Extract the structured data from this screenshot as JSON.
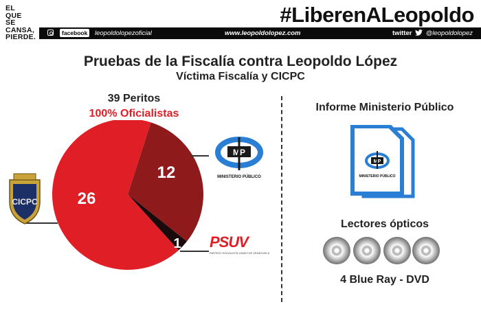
{
  "header": {
    "slogan_lines": [
      "EL",
      "QUE",
      "SE",
      "CANSA,",
      "PIERDE."
    ],
    "hashtag": "#LiberenALeopoldo",
    "facebook_label": "facebook",
    "facebook_handle": "leopoldolopezoficial",
    "website": "www.leopoldolopez.com",
    "twitter_label": "twitter",
    "twitter_handle": "@leopoldolopez"
  },
  "title": "Pruebas de la Fiscalía contra Leopoldo López",
  "subtitle": "Víctima Fiscalía y CICPC",
  "left_panel": {
    "peritos": "39 Peritos",
    "oficialistas": "100% Oficialistas",
    "mp_label": "MINISTERIO PÚBLICO",
    "psuv_logo": "PSUV",
    "psuv_sub": "PARTIDO SOCIALISTA UNIDO DE VENEZUELA",
    "cicpc_logo": "CICPC"
  },
  "right_panel": {
    "informe_title": "Informe Ministerio Público",
    "doc_label": "MINISTERIO PÚBLICO",
    "lectores_title": "Lectores ópticos",
    "disc_count": 4,
    "disc_caption": "4 Blue Ray - DVD"
  },
  "colors": {
    "cicpc": "#e01e25",
    "ministerio": "#8e1a1c",
    "psuv": "#1a0a0b",
    "accent_blue": "#2a7fd4"
  },
  "chart_data": {
    "type": "pie",
    "title": "39 Peritos",
    "subtitle": "100% Oficialistas",
    "slices": [
      {
        "label": "CICPC",
        "value": 26,
        "color": "#e01e25"
      },
      {
        "label": "Ministerio Público",
        "value": 12,
        "color": "#8e1a1c"
      },
      {
        "label": "PSUV",
        "value": 1,
        "color": "#1a0a0b"
      }
    ],
    "total": 39
  }
}
